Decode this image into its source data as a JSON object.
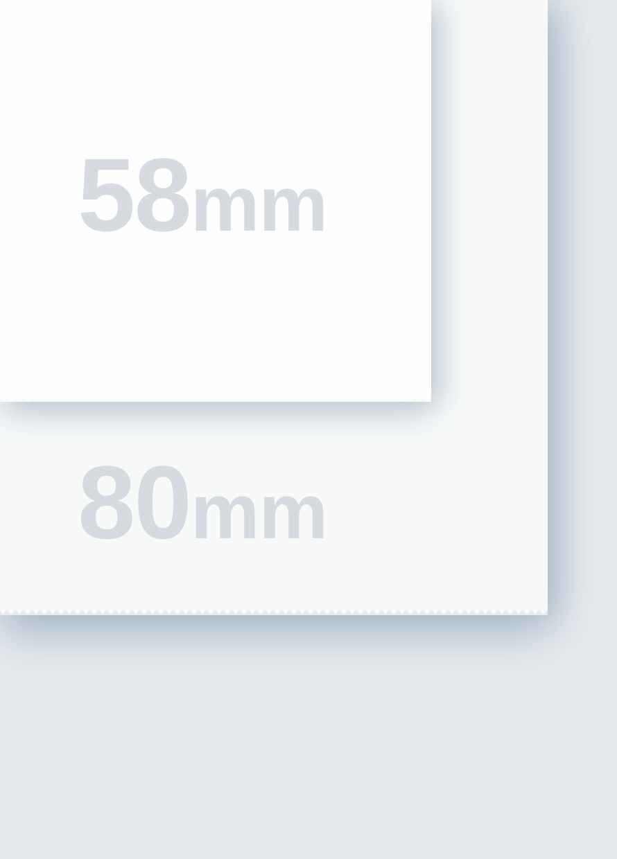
{
  "papers": {
    "small": {
      "number": "58",
      "unit": "mm"
    },
    "large": {
      "number": "80",
      "unit": "mm"
    }
  },
  "colors": {
    "background": "#e6ebef",
    "paper_large": "#f8fafa",
    "paper_small": "#fefefe",
    "label_text": "#d5dbe1"
  }
}
